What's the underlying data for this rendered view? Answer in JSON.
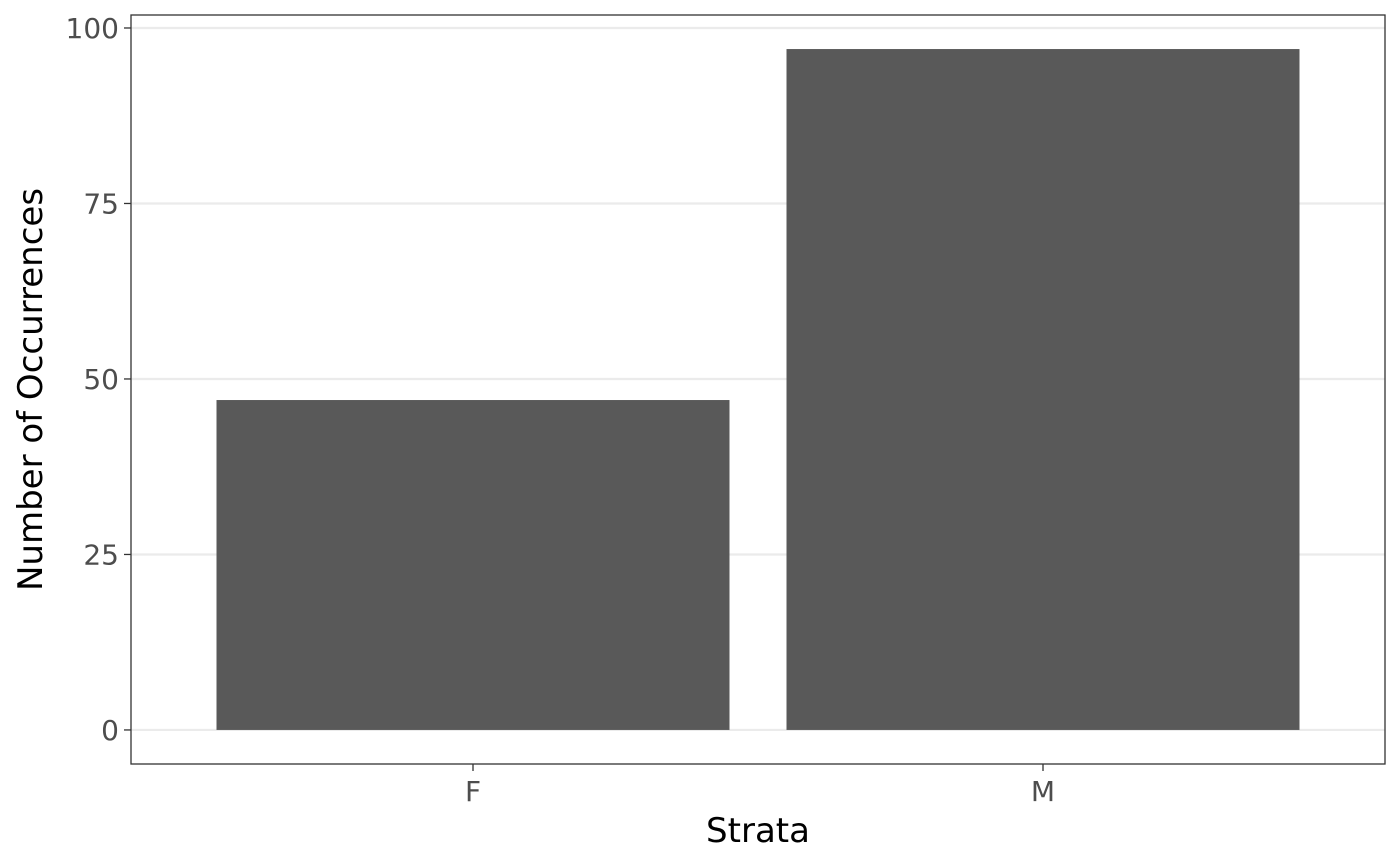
{
  "chart_data": {
    "type": "bar",
    "title": "",
    "xlabel": "Strata",
    "ylabel": "Number of Occurrences",
    "categories": [
      "F",
      "M"
    ],
    "values": [
      47,
      97
    ],
    "ylim": [
      -4.85,
      101.85
    ],
    "yticks": [
      0,
      25,
      50,
      75,
      100
    ],
    "ytick_labels": [
      "0",
      "25",
      "50",
      "75",
      "100"
    ],
    "grid": "horizontal",
    "legend": "none",
    "colors": {
      "bar": "#595959",
      "grid": "#ebebeb",
      "panel_border": "#333333",
      "tick_text": "#4d4d4d",
      "axis_title": "#000000"
    }
  }
}
